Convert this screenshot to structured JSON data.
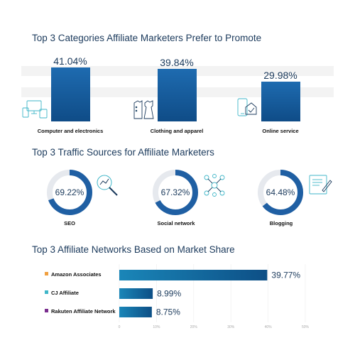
{
  "chart_data": [
    {
      "type": "bar",
      "title": "Top 3 Categories Affiliate Marketers Prefer to Promote",
      "categories": [
        "Computer and electronics",
        "Clothing and apparel",
        "Online service"
      ],
      "values": [
        41.04,
        39.84,
        29.98
      ],
      "value_labels": [
        "41.04%",
        "39.84%",
        "29.98%"
      ],
      "icons": [
        "computer-devices-icon",
        "clothing-icon",
        "online-service-icon"
      ],
      "colors": {
        "bar_top": "#1e6bb0",
        "bar_bottom": "#0f4c87"
      }
    },
    {
      "type": "pie",
      "title": "Top 3 Traffic Sources for Affiliate Marketers",
      "categories": [
        "SEO",
        "Social network",
        "Blogging"
      ],
      "values": [
        69.22,
        67.32,
        64.48
      ],
      "value_labels": [
        "69.22%",
        "67.32%",
        "64.48%"
      ],
      "icons": [
        "seo-magnifier-icon",
        "social-network-icon",
        "blogging-icon"
      ],
      "colors": {
        "fill": "#1f5fa3",
        "track": "#e6e9ee"
      }
    },
    {
      "type": "bar",
      "orientation": "horizontal",
      "title": "Top 3 Affiliate Networks Based on Market Share",
      "categories": [
        "Amazon Associates",
        "CJ Affiliate",
        "Rakuten Affiliate Network"
      ],
      "values": [
        39.77,
        8.99,
        8.75
      ],
      "value_labels": [
        "39.77%",
        "8.99%",
        "8.75%"
      ],
      "legend_colors": [
        "#f0a040",
        "#3fb6c8",
        "#7a2e8e"
      ],
      "xlim": [
        0,
        50
      ],
      "xticks": [
        "0",
        "10%",
        "20%",
        "30%",
        "40%",
        "50%"
      ],
      "grid": true
    }
  ]
}
